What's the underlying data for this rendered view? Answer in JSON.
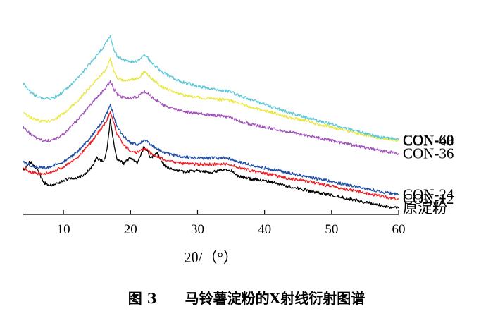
{
  "figure_caption": "图 3　　马铃薯淀粉的X射线衍射图谱",
  "chart_data": {
    "type": "line",
    "xlabel": "2θ/（°）",
    "ylabel": "",
    "xlim": [
      4,
      60
    ],
    "ylim": [
      0,
      11
    ],
    "x_ticks": [
      "10",
      "20",
      "30",
      "40",
      "50",
      "60"
    ],
    "grid": false,
    "legend": "labels at right end of each curve",
    "x": [
      4,
      5,
      6,
      7,
      8,
      9,
      10,
      11,
      12,
      13,
      14,
      15,
      16,
      16.5,
      17,
      17.5,
      18,
      19,
      20,
      21,
      22,
      22.5,
      23,
      24,
      25,
      26,
      27,
      28,
      30,
      32,
      34,
      35,
      36,
      38,
      40,
      42,
      44,
      46,
      48,
      50,
      52,
      54,
      56,
      58,
      60
    ],
    "series": [
      {
        "name": "原淀粉",
        "color": "#000000",
        "values": [
          2.35,
          2.9,
          2.55,
          1.75,
          1.6,
          1.7,
          1.85,
          2.0,
          2.0,
          2.15,
          2.5,
          3.1,
          2.9,
          3.6,
          5.2,
          3.9,
          3.0,
          2.8,
          3.1,
          2.8,
          3.7,
          3.5,
          3.1,
          3.4,
          2.7,
          2.5,
          2.4,
          2.35,
          2.4,
          2.3,
          2.5,
          2.4,
          2.1,
          1.95,
          1.85,
          1.7,
          1.5,
          1.35,
          1.2,
          1.05,
          0.9,
          0.75,
          0.6,
          0.45,
          0.35
        ]
      },
      {
        "name": "CON-12",
        "color": "#ee1d23",
        "values": [
          2.55,
          2.35,
          2.25,
          2.25,
          2.3,
          2.45,
          2.6,
          2.85,
          3.1,
          3.5,
          3.9,
          4.4,
          4.9,
          5.2,
          5.6,
          5.0,
          4.4,
          3.8,
          3.5,
          3.4,
          3.6,
          3.55,
          3.35,
          3.2,
          3.0,
          2.9,
          2.85,
          2.8,
          2.75,
          2.75,
          2.8,
          2.75,
          2.6,
          2.4,
          2.25,
          2.1,
          1.95,
          1.85,
          1.7,
          1.55,
          1.4,
          1.25,
          1.1,
          0.95,
          0.85
        ]
      },
      {
        "name": "CON-24",
        "color": "#1f4fa8",
        "values": [
          2.9,
          2.7,
          2.6,
          2.55,
          2.6,
          2.75,
          2.9,
          3.15,
          3.4,
          3.8,
          4.2,
          4.7,
          5.2,
          5.6,
          6.0,
          5.4,
          4.8,
          4.3,
          3.95,
          3.85,
          4.05,
          4.0,
          3.8,
          3.6,
          3.4,
          3.3,
          3.2,
          3.15,
          3.1,
          3.1,
          3.1,
          3.05,
          2.9,
          2.7,
          2.55,
          2.4,
          2.25,
          2.1,
          1.95,
          1.8,
          1.65,
          1.5,
          1.35,
          1.2,
          1.1
        ]
      },
      {
        "name": "CON-36",
        "color": "#a052b8",
        "values": [
          4.8,
          4.45,
          4.2,
          4.05,
          4.05,
          4.2,
          4.4,
          4.75,
          5.15,
          5.55,
          6.0,
          6.45,
          6.8,
          7.05,
          7.3,
          6.9,
          6.6,
          6.4,
          6.4,
          6.45,
          6.75,
          6.7,
          6.5,
          6.25,
          6.0,
          5.85,
          5.75,
          5.65,
          5.55,
          5.45,
          5.4,
          5.3,
          5.15,
          4.95,
          4.8,
          4.65,
          4.5,
          4.35,
          4.2,
          4.05,
          3.9,
          3.75,
          3.6,
          3.45,
          3.35
        ]
      },
      {
        "name": "CON-48",
        "color": "#e8e83c",
        "values": [
          5.6,
          5.35,
          5.2,
          5.1,
          5.15,
          5.3,
          5.55,
          5.85,
          6.2,
          6.6,
          7.0,
          7.4,
          7.8,
          8.1,
          8.55,
          7.9,
          7.5,
          7.35,
          7.4,
          7.45,
          7.8,
          7.75,
          7.5,
          7.2,
          6.95,
          6.8,
          6.65,
          6.55,
          6.45,
          6.35,
          6.3,
          6.25,
          6.1,
          5.9,
          5.7,
          5.5,
          5.3,
          5.15,
          4.95,
          4.8,
          4.6,
          4.45,
          4.3,
          4.15,
          4.05
        ]
      },
      {
        "name": "CON-60",
        "color": "#5ec8d8",
        "values": [
          7.2,
          6.75,
          6.5,
          6.35,
          6.35,
          6.5,
          6.75,
          7.05,
          7.45,
          7.85,
          8.3,
          8.75,
          9.2,
          9.5,
          9.8,
          9.1,
          8.7,
          8.45,
          8.4,
          8.4,
          8.7,
          8.65,
          8.4,
          8.05,
          7.75,
          7.55,
          7.4,
          7.25,
          7.05,
          6.9,
          6.8,
          6.75,
          6.55,
          6.3,
          6.05,
          5.8,
          5.55,
          5.35,
          5.15,
          4.95,
          4.75,
          4.55,
          4.35,
          4.2,
          4.1
        ]
      }
    ]
  }
}
